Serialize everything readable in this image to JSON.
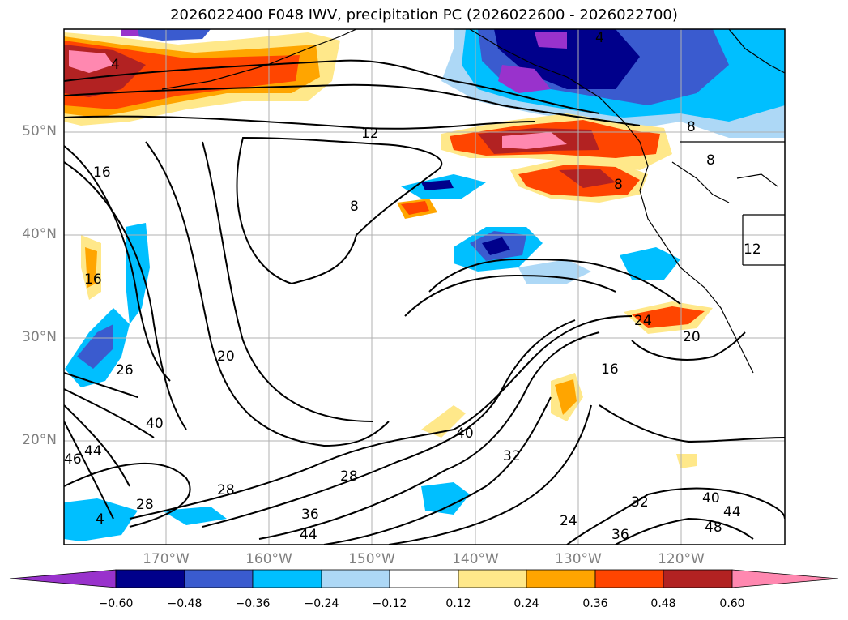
{
  "title": "2026022400 F048 IWV, precipitation PC (2026022600 - 2026022700)",
  "lat_labels": [
    "50°N",
    "40°N",
    "30°N",
    "20°N"
  ],
  "lon_labels": [
    "170°W",
    "160°W",
    "150°W",
    "140°W",
    "130°W",
    "120°W"
  ],
  "contour_labels": [
    "4",
    "4",
    "8",
    "8",
    "8",
    "8",
    "12",
    "12",
    "16",
    "16",
    "16",
    "20",
    "20",
    "24",
    "24",
    "28",
    "28",
    "28",
    "32",
    "32",
    "36",
    "36",
    "40",
    "40",
    "40",
    "44",
    "44",
    "44",
    "48",
    "26",
    "4",
    "46"
  ],
  "chart_data": {
    "type": "heatmap",
    "title": "2026022400 F048 IWV, precipitation PC (2026022600 - 2026022700)",
    "x_ticks": [
      "170°W",
      "160°W",
      "150°W",
      "140°W",
      "130°W",
      "120°W"
    ],
    "y_ticks": [
      "50°N",
      "40°N",
      "30°N",
      "20°N"
    ],
    "colorbar": {
      "extend": "both",
      "tick_labels": [
        "−0.60",
        "−0.48",
        "−0.36",
        "−0.24",
        "−0.12",
        "0.12",
        "0.24",
        "0.36",
        "0.48",
        "0.60"
      ],
      "levels": [
        -0.6,
        -0.48,
        -0.36,
        -0.24,
        -0.12,
        0.12,
        0.24,
        0.36,
        0.48,
        0.6
      ],
      "colors": [
        "#9932cc",
        "#00008b",
        "#3a5bcf",
        "#00bfff",
        "#add8f6",
        "#ffffff",
        "#ffe88a",
        "#ffa500",
        "#ff4500",
        "#b22222",
        "#ff88b0"
      ]
    },
    "contour_levels": [
      4,
      8,
      12,
      16,
      20,
      24,
      28,
      32,
      36,
      40,
      44,
      48
    ],
    "grid": true
  }
}
